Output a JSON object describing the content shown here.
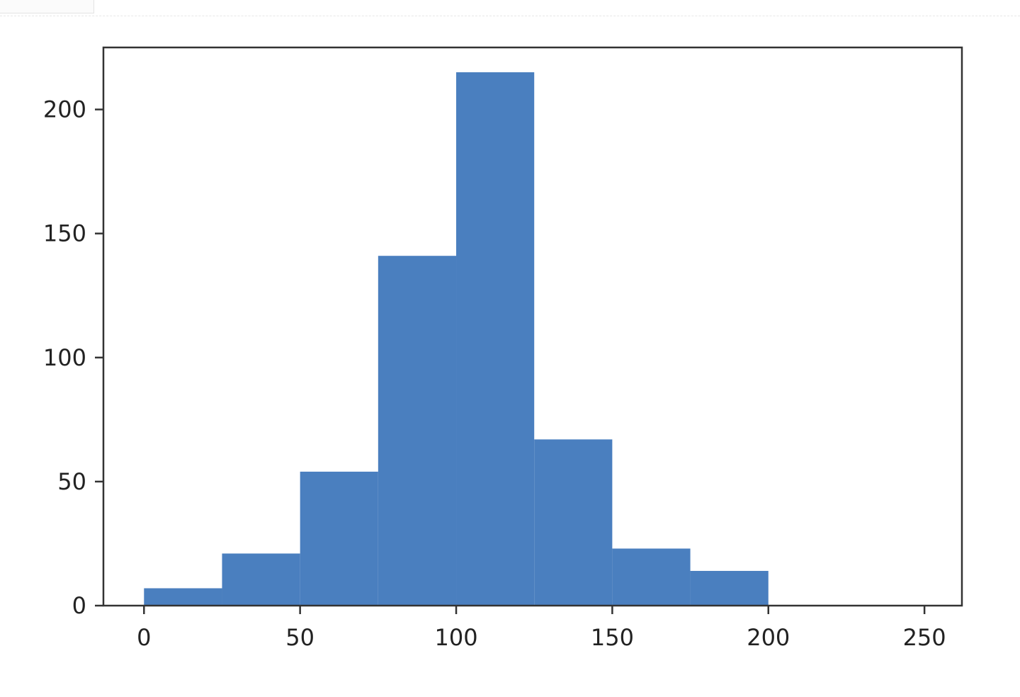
{
  "chart_data": {
    "type": "bar",
    "histogram": true,
    "bins": [
      {
        "x0": 0,
        "x1": 25,
        "count": 7
      },
      {
        "x0": 25,
        "x1": 50,
        "count": 21
      },
      {
        "x0": 50,
        "x1": 75,
        "count": 54
      },
      {
        "x0": 75,
        "x1": 100,
        "count": 141
      },
      {
        "x0": 100,
        "x1": 125,
        "count": 215
      },
      {
        "x0": 125,
        "x1": 150,
        "count": 67
      },
      {
        "x0": 150,
        "x1": 175,
        "count": 23
      },
      {
        "x0": 175,
        "x1": 200,
        "count": 14
      }
    ],
    "title": "",
    "xlabel": "",
    "ylabel": "",
    "xlim": [
      -13,
      262
    ],
    "ylim": [
      0,
      225
    ],
    "xticks": [
      0,
      50,
      100,
      150,
      200,
      250
    ],
    "yticks": [
      0,
      50,
      100,
      150,
      200
    ],
    "grid": false,
    "bar_color": "#4a7fbf",
    "axis_color": "#333333"
  }
}
